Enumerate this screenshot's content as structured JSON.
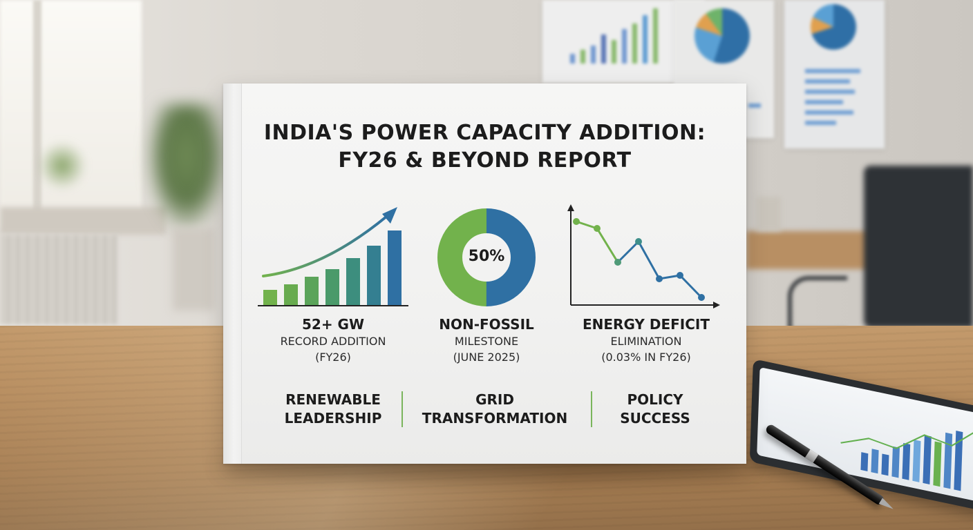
{
  "report": {
    "title_line1": "INDIA'S POWER CAPACITY ADDITION:",
    "title_line2": "FY26 & BEYOND REPORT"
  },
  "stats": [
    {
      "headline": "52+ GW",
      "line1": "RECORD ADDITION",
      "line2": "(FY26)"
    },
    {
      "headline": "NON-FOSSIL",
      "line1": "MILESTONE",
      "line2": "(JUNE 2025)"
    },
    {
      "headline": "ENERGY DEFICIT",
      "line1": "ELIMINATION",
      "line2": "(0.03% IN FY26)"
    }
  ],
  "donut": {
    "label": "50%",
    "green_share": 0.5,
    "green": "#72b24c",
    "blue": "#2f70a3"
  },
  "pillars": [
    {
      "line1": "RENEWABLE",
      "line2": "LEADERSHIP"
    },
    {
      "line1": "GRID",
      "line2": "TRANSFORMATION"
    },
    {
      "line1": "POLICY",
      "line2": "SUCCESS"
    }
  ],
  "colors": {
    "green": "#72b24c",
    "blue": "#2f70a3",
    "teal": "#3f8f8a",
    "ink": "#1c1c1c",
    "divider": "#7ab55c"
  },
  "icons": [
    "rising-bar-chart-icon",
    "donut-chart-icon",
    "declining-line-chart-icon",
    "pen-icon",
    "tablet-icon"
  ]
}
